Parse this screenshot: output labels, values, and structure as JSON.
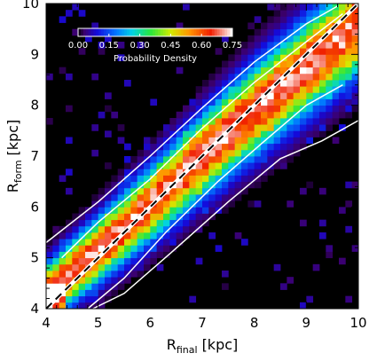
{
  "chart_data": {
    "type": "heatmap",
    "xlabel": {
      "main": "R",
      "sub": "final",
      "unit": "[kpc]"
    },
    "ylabel": {
      "main": "R",
      "sub": "form",
      "unit": "[kpc]"
    },
    "xlim": [
      4,
      10
    ],
    "ylim": [
      4,
      10
    ],
    "xticks": [
      "4",
      "5",
      "6",
      "7",
      "8",
      "9",
      "10"
    ],
    "yticks": [
      "4",
      "5",
      "6",
      "7",
      "8",
      "9",
      "10"
    ],
    "colorbar": {
      "label": "Probability Density",
      "range": [
        0.0,
        0.75
      ],
      "ticks": [
        "0.00",
        "0.15",
        "0.30",
        "0.45",
        "0.60",
        "0.75"
      ],
      "location": "top-left"
    },
    "reference_line": {
      "style": "dashed",
      "x": [
        4,
        10
      ],
      "y": [
        4,
        10
      ]
    },
    "density_model": {
      "ridge": [
        [
          4,
          4.3
        ],
        [
          5,
          5.15
        ],
        [
          6,
          6.05
        ],
        [
          7,
          7.0
        ],
        [
          8,
          7.9
        ],
        [
          9,
          8.75
        ],
        [
          10,
          9.6
        ]
      ],
      "ridge_width_kpc": [
        [
          4,
          0.35
        ],
        [
          6,
          0.45
        ],
        [
          8,
          0.55
        ],
        [
          10,
          0.6
        ]
      ],
      "peak_density": 0.75
    },
    "contours": [
      {
        "name": "inner",
        "upper": [
          [
            4.3,
            5.0
          ],
          [
            5,
            5.7
          ],
          [
            6,
            6.55
          ],
          [
            7,
            7.55
          ],
          [
            8,
            8.45
          ],
          [
            9,
            9.25
          ],
          [
            9.7,
            9.8
          ]
        ],
        "lower": [
          [
            4.8,
            4.0
          ],
          [
            5.5,
            4.6
          ],
          [
            6.3,
            5.5
          ],
          [
            7.3,
            6.5
          ],
          [
            8.2,
            7.3
          ],
          [
            9.0,
            8.0
          ],
          [
            9.7,
            8.4
          ]
        ]
      },
      {
        "name": "outer",
        "upper": [
          [
            4.0,
            5.3
          ],
          [
            5,
            6.1
          ],
          [
            6,
            7.0
          ],
          [
            7,
            7.95
          ],
          [
            8,
            8.85
          ],
          [
            9,
            9.6
          ],
          [
            9.6,
            9.95
          ]
        ],
        "lower": [
          [
            4.9,
            4.0
          ],
          [
            5.5,
            4.3
          ],
          [
            6.4,
            5.1
          ],
          [
            7.5,
            6.1
          ],
          [
            8.5,
            6.95
          ],
          [
            9.3,
            7.3
          ],
          [
            10,
            7.7
          ]
        ]
      }
    ]
  }
}
